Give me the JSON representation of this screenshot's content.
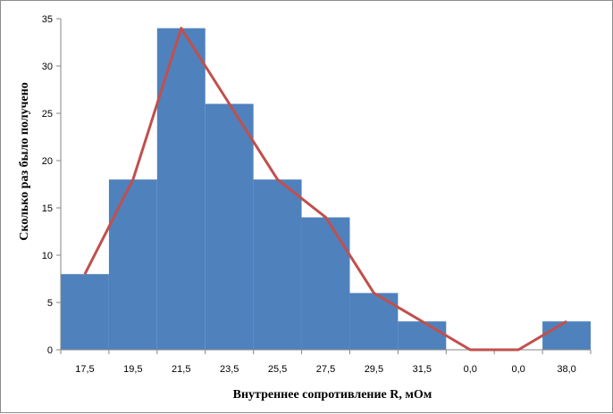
{
  "chart_data": {
    "type": "bar",
    "title": "",
    "xlabel": "Внутреннее сопротивление R, мОм",
    "ylabel": "Сколько раз было получено",
    "categories": [
      "17,5",
      "19,5",
      "21,5",
      "23,5",
      "25,5",
      "27,5",
      "29,5",
      "31,5",
      "0,0",
      "0,0",
      "38,0"
    ],
    "series": [
      {
        "type": "bar",
        "values": [
          8,
          18,
          34,
          26,
          18,
          14,
          6,
          3,
          0,
          0,
          3
        ]
      },
      {
        "type": "line",
        "values": [
          8,
          18,
          34,
          26,
          18,
          14,
          6,
          3,
          0,
          0,
          3
        ]
      }
    ],
    "ylim": [
      0,
      35
    ],
    "yticks": [
      0,
      5,
      10,
      15,
      20,
      25,
      30,
      35
    ],
    "grid": false,
    "legend": "none",
    "colors": {
      "bar": "#4f81bd",
      "line": "#c0504d",
      "axis": "#868686"
    }
  }
}
